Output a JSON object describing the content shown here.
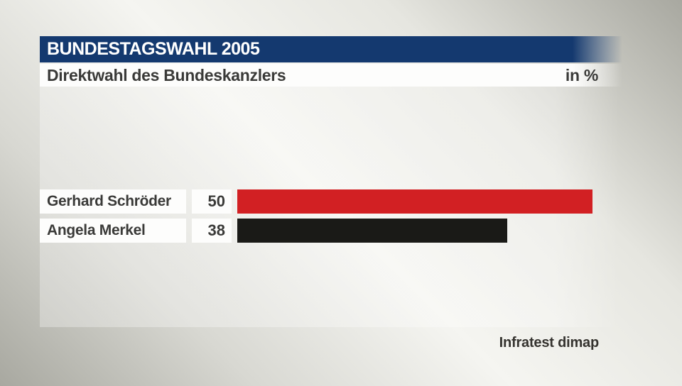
{
  "header": {
    "title": "BUNDESTAGSWAHL 2005",
    "subtitle": "Direktwahl des Bundeskanzlers",
    "unit_label": "in %"
  },
  "source": "Infratest dimap",
  "colors": {
    "header_navy": "#14396f",
    "text_dark": "#3a3a38",
    "box_white": "#fdfdfc",
    "bg_light": "#f5f5f1",
    "bg_dark": "#a8a8a0",
    "bar_red": "#d22023",
    "bar_black": "#1a1a17"
  },
  "chart_data": {
    "type": "bar",
    "orientation": "horizontal",
    "title": "Direktwahl des Bundeskanzlers",
    "subtitle_context": "BUNDESTAGSWAHL 2005",
    "unit": "in %",
    "categories": [
      "Gerhard Schröder",
      "Angela Merkel"
    ],
    "values": [
      50,
      38
    ],
    "bar_colors": [
      "#d22023",
      "#1a1a17"
    ],
    "xlim": [
      0,
      55
    ],
    "grid": false,
    "legend": false,
    "source": "Infratest dimap"
  }
}
